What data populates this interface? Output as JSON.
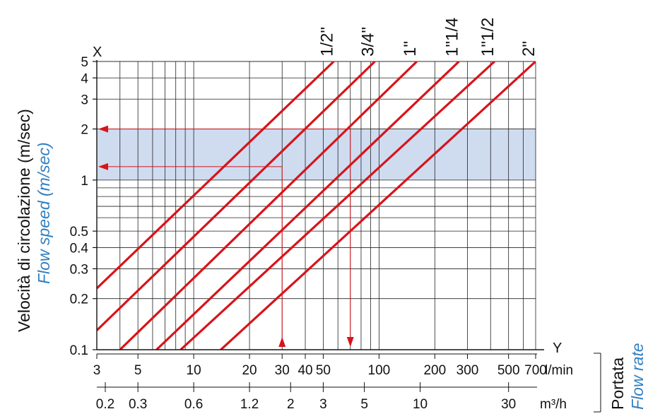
{
  "chart_data": {
    "type": "line",
    "title": "",
    "ylabel": "Velocità di circolazione (m/sec)",
    "ylabel_en": "Flow speed (m/sec)",
    "xlabel": "Portata",
    "xlabel_en": "Flow rate",
    "x_axis_letter": "X",
    "y_axis_letter": "Y",
    "x_scale": "log",
    "y_scale": "log",
    "xlim_lmin": [
      3,
      700
    ],
    "ylim": [
      0.1,
      5
    ],
    "grid": true,
    "y_ticks": [
      "0.1",
      "0.2",
      "0.3",
      "0.4",
      "0.5",
      "1",
      "2",
      "3",
      "4",
      "5"
    ],
    "x_ticks_lmin": [
      "3",
      "5",
      "10",
      "20",
      "30",
      "40",
      "50",
      "100",
      "200",
      "300",
      "500",
      "700"
    ],
    "x_unit_lmin": "l/min",
    "x_ticks_m3h": [
      "0.2",
      "0.3",
      "0.6",
      "1.2",
      "2",
      "3",
      "5",
      "10",
      "30"
    ],
    "x_unit_m3h": "m³/h",
    "highlight_band_y": [
      1,
      2
    ],
    "line_color": "#d7141a",
    "band_color": "#cfdcf0",
    "label_color_en": "#2f7fc1",
    "series": [
      {
        "name": "1/2\"",
        "x": [
          3,
          57
        ],
        "y": [
          0.23,
          5
        ]
      },
      {
        "name": "3/4\"",
        "x": [
          3,
          95
        ],
        "y": [
          0.13,
          5
        ]
      },
      {
        "name": "1\"",
        "x": [
          4,
          160
        ],
        "y": [
          0.1,
          5
        ]
      },
      {
        "name": "1\"1/4",
        "x": [
          6.3,
          270
        ],
        "y": [
          0.1,
          5
        ]
      },
      {
        "name": "1\"1/2",
        "x": [
          8.5,
          420
        ],
        "y": [
          0.1,
          5
        ]
      },
      {
        "name": "2\"",
        "x": [
          14,
          700
        ],
        "y": [
          0.1,
          5
        ]
      }
    ],
    "example_arrows": [
      {
        "x": 30,
        "y": 1.2
      },
      {
        "x": 70,
        "y": 2
      }
    ]
  }
}
